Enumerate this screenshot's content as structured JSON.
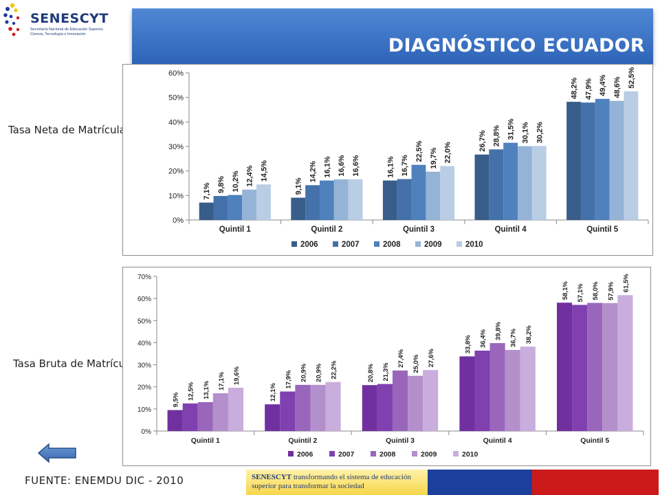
{
  "header": {
    "logo_name": "SENESCYT",
    "logo_subtitle": "Secretaría Nacional de Educación Superior, Ciencia, Tecnología e Innovación",
    "title": "DIAGNÓSTICO ECUADOR"
  },
  "labels": {
    "chart1": "Tasa Neta de Matrícula en ES",
    "chart2": "Tasa Bruta de Matrícula en ES"
  },
  "footer": {
    "source": "FUENTE: ENEMDU DIC - 2010",
    "banner_brand": "SENESCYT",
    "banner_text": "transformando el sistema de educación superior para transformar la sociedad"
  },
  "icons": {
    "back": "back-arrow-icon"
  },
  "chart_data": [
    {
      "type": "bar",
      "title": "",
      "xlabel": "",
      "ylabel": "",
      "ylim": [
        0,
        60
      ],
      "yticks": [
        "0%",
        "10%",
        "20%",
        "30%",
        "40%",
        "50%",
        "60%"
      ],
      "categories": [
        "Quintil 1",
        "Quintil 2",
        "Quintil 3",
        "Quintil 4",
        "Quintil 5"
      ],
      "legend": "bottom",
      "grid": false,
      "series": [
        {
          "name": "2006",
          "color": "#385d8a",
          "values": [
            7.1,
            9.1,
            16.1,
            26.7,
            48.2
          ],
          "labels": [
            "7,1%",
            "9,1%",
            "16,1%",
            "26,7%",
            "48,2%"
          ]
        },
        {
          "name": "2007",
          "color": "#4471a9",
          "values": [
            9.8,
            14.2,
            16.7,
            28.8,
            47.9
          ],
          "labels": [
            "9,8%",
            "14,2%",
            "16,7%",
            "28,8%",
            "47,9%"
          ]
        },
        {
          "name": "2008",
          "color": "#4f81bd",
          "values": [
            10.2,
            16.1,
            22.5,
            31.5,
            49.4
          ],
          "labels": [
            "10,2%",
            "16,1%",
            "22,5%",
            "31,5%",
            "49,4%"
          ]
        },
        {
          "name": "2009",
          "color": "#95b3d7",
          "values": [
            12.4,
            16.6,
            19.7,
            30.1,
            48.6
          ],
          "labels": [
            "12,4%",
            "16,6%",
            "19,7%",
            "30,1%",
            "48,6%"
          ]
        },
        {
          "name": "2010",
          "color": "#b9cde5",
          "values": [
            14.5,
            16.6,
            22.0,
            30.2,
            52.5
          ],
          "labels": [
            "14,5%",
            "16,6%",
            "22,0%",
            "30,2%",
            "52,5%"
          ]
        }
      ]
    },
    {
      "type": "bar",
      "title": "",
      "xlabel": "",
      "ylabel": "",
      "ylim": [
        0,
        70
      ],
      "yticks": [
        "0%",
        "10%",
        "20%",
        "30%",
        "40%",
        "50%",
        "60%",
        "70%"
      ],
      "categories": [
        "Quintil 1",
        "Quintil 2",
        "Quintil 3",
        "Quintil 4",
        "Quintil 5"
      ],
      "legend": "bottom",
      "grid": false,
      "series": [
        {
          "name": "2006",
          "color": "#7030a0",
          "values": [
            9.5,
            12.1,
            20.8,
            33.8,
            58.1
          ],
          "labels": [
            "9,5%",
            "12,1%",
            "20,8%",
            "33,8%",
            "58,1%"
          ]
        },
        {
          "name": "2007",
          "color": "#8040b0",
          "values": [
            12.5,
            17.9,
            21.3,
            36.4,
            57.1
          ],
          "labels": [
            "12,5%",
            "17,9%",
            "21,3%",
            "36,4%",
            "57,1%"
          ]
        },
        {
          "name": "2008",
          "color": "#9966bb",
          "values": [
            13.1,
            20.9,
            27.4,
            39.8,
            58.0
          ],
          "labels": [
            "13,1%",
            "20,9%",
            "27,4%",
            "39,8%",
            "58,0%"
          ]
        },
        {
          "name": "2009",
          "color": "#b38fcc",
          "values": [
            17.1,
            20.9,
            25.0,
            36.7,
            57.9
          ],
          "labels": [
            "17,1%",
            "20,9%",
            "25,0%",
            "36,7%",
            "57,9%"
          ]
        },
        {
          "name": "2010",
          "color": "#c9addc",
          "values": [
            19.6,
            22.2,
            27.6,
            38.2,
            61.5
          ],
          "labels": [
            "19,6%",
            "22,2%",
            "27,6%",
            "38,2%",
            "61,5%"
          ]
        }
      ]
    }
  ]
}
